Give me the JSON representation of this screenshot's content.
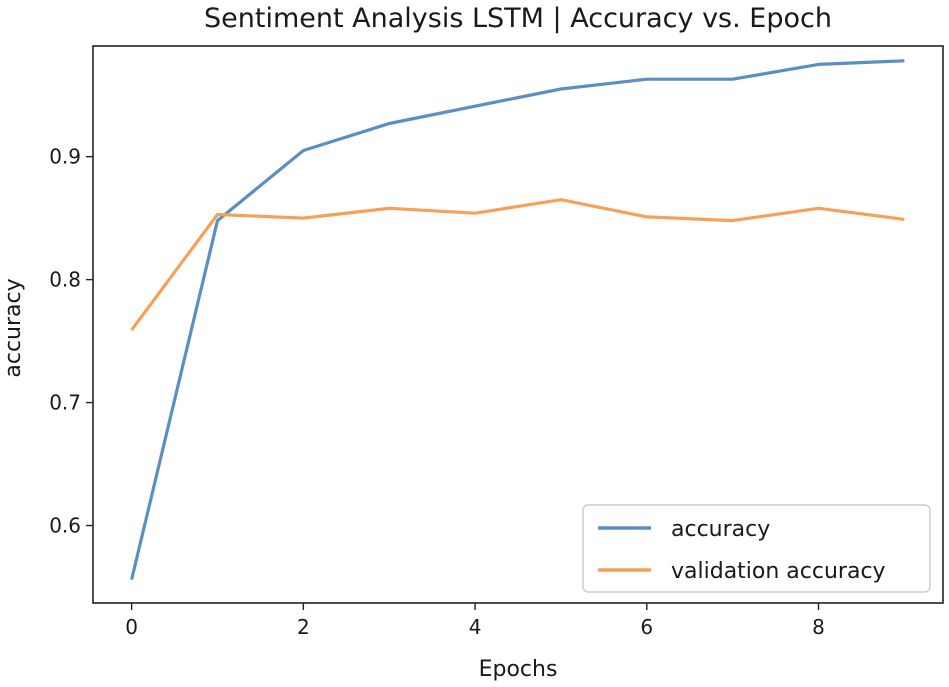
{
  "chart_data": {
    "type": "line",
    "title": "Sentiment Analysis LSTM | Accuracy vs. Epoch",
    "xlabel": "Epochs",
    "ylabel": "accuracy",
    "x": [
      0,
      1,
      2,
      3,
      4,
      5,
      6,
      7,
      8,
      9
    ],
    "xlim": [
      -0.45,
      9.45
    ],
    "ylim": [
      0.537,
      0.99
    ],
    "xticks": [
      0,
      2,
      4,
      6,
      8
    ],
    "xtick_labels": [
      "0",
      "2",
      "4",
      "6",
      "8"
    ],
    "yticks": [
      0.6,
      0.7,
      0.8,
      0.9
    ],
    "ytick_labels": [
      "0.6",
      "0.7",
      "0.8",
      "0.9"
    ],
    "grid": false,
    "legend_position": "lower-right",
    "series": [
      {
        "name": "accuracy",
        "color": "#5b8fc2",
        "values": [
          0.556,
          0.848,
          0.905,
          0.927,
          0.941,
          0.955,
          0.963,
          0.963,
          0.975,
          0.978
        ]
      },
      {
        "name": "validation accuracy",
        "color": "#f5a15a",
        "values": [
          0.759,
          0.853,
          0.85,
          0.858,
          0.854,
          0.865,
          0.851,
          0.848,
          0.858,
          0.849
        ]
      }
    ]
  }
}
